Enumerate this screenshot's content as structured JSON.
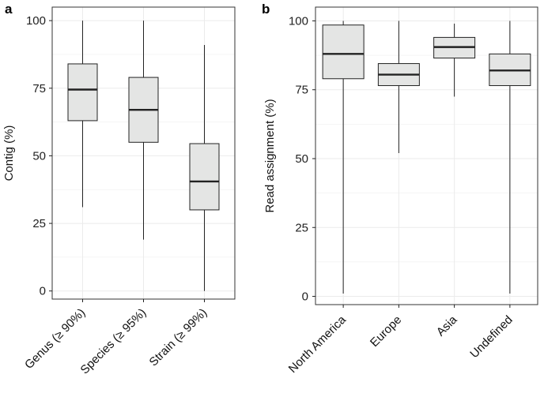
{
  "chart_data": [
    {
      "panel": "a",
      "type": "boxplot",
      "title": "",
      "xlabel": "",
      "ylabel": "Contig (%)",
      "ylim": [
        -3,
        105
      ],
      "yticks": [
        0,
        25,
        50,
        75,
        100
      ],
      "grid": true,
      "categories": [
        "Genus (≥ 90%)",
        "Species (≥ 95%)",
        "Strain (≥ 99%)"
      ],
      "boxes": [
        {
          "min": 31,
          "q1": 63,
          "median": 74.5,
          "q3": 84,
          "max": 100
        },
        {
          "min": 19,
          "q1": 55,
          "median": 67,
          "q3": 79,
          "max": 100
        },
        {
          "min": 0,
          "q1": 30,
          "median": 40.5,
          "q3": 54.5,
          "max": 91
        }
      ]
    },
    {
      "panel": "b",
      "type": "boxplot",
      "title": "",
      "xlabel": "",
      "ylabel": "Read assignment (%)",
      "ylim": [
        -3,
        105
      ],
      "yticks": [
        0,
        25,
        50,
        75,
        100
      ],
      "grid": true,
      "categories": [
        "North America",
        "Europe",
        "Asia",
        "Undefined"
      ],
      "boxes": [
        {
          "min": 1,
          "q1": 79,
          "median": 88,
          "q3": 98.5,
          "max": 100
        },
        {
          "min": 52,
          "q1": 76.5,
          "median": 80.5,
          "q3": 84.5,
          "max": 100
        },
        {
          "min": 72.5,
          "q1": 86.5,
          "median": 90.5,
          "q3": 94,
          "max": 99
        },
        {
          "min": 1,
          "q1": 76.5,
          "median": 82,
          "q3": 88,
          "max": 100
        }
      ]
    }
  ],
  "colors": {
    "box_fill": "#e4e5e4",
    "stroke": "#222222",
    "grid": "#ebebeb",
    "panel_border": "#333333",
    "background": "#ffffff"
  }
}
